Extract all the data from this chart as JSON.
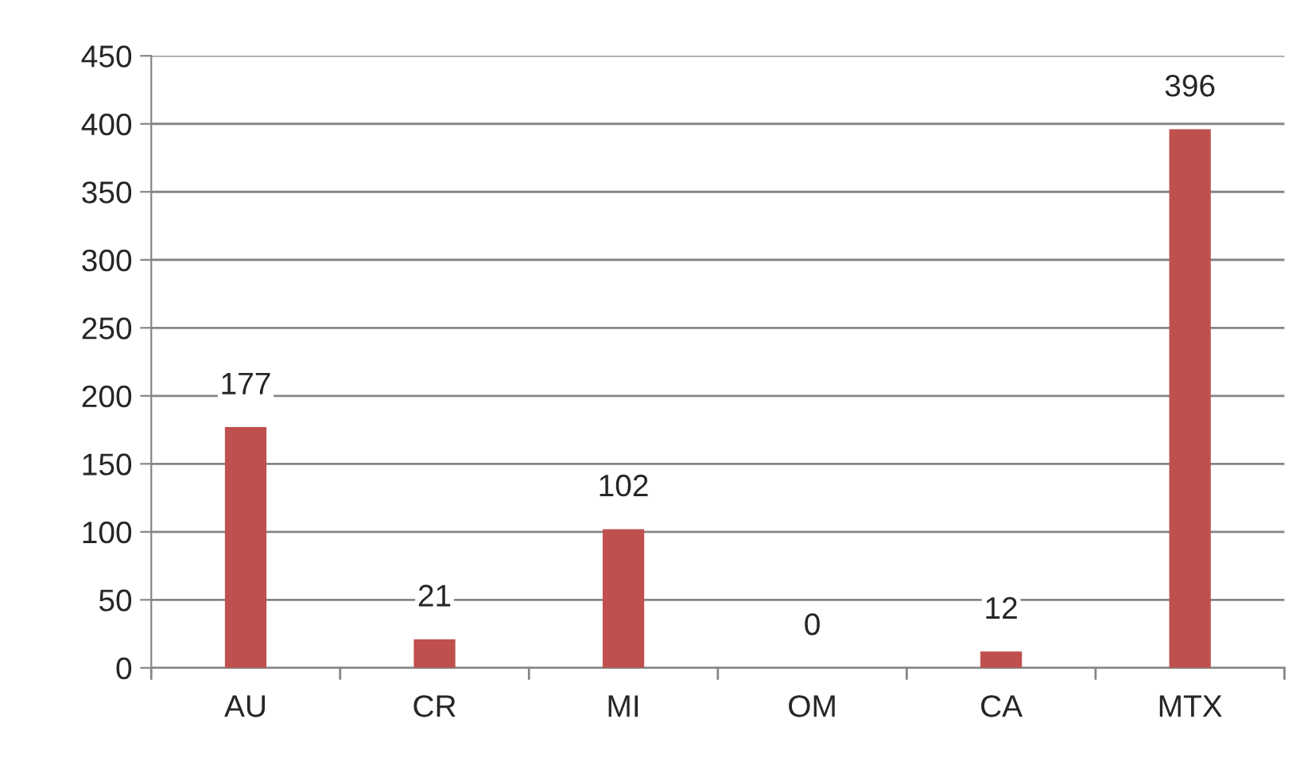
{
  "chart_data": {
    "type": "bar",
    "categories": [
      "AU",
      "CR",
      "MI",
      "OM",
      "CA",
      "MTX"
    ],
    "values": [
      177,
      21,
      102,
      0,
      12,
      396
    ],
    "color": "#c0504d",
    "ylim": [
      0,
      450
    ],
    "yticks": [
      0,
      50,
      100,
      150,
      200,
      250,
      300,
      350,
      400,
      450
    ],
    "grid": "y",
    "data_labels": true
  }
}
